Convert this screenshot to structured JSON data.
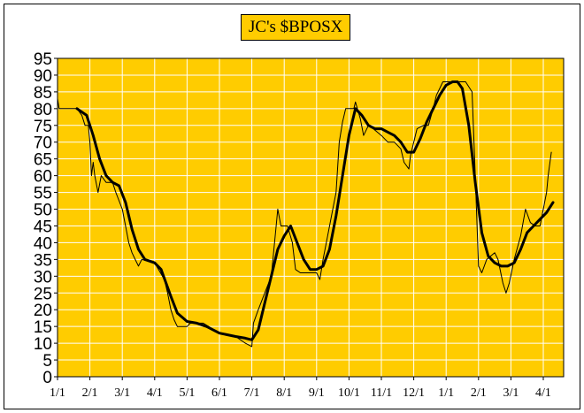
{
  "chart_data": {
    "type": "line",
    "title": "JC's $BPOSX",
    "xlabel": "",
    "ylabel": "",
    "ylim": [
      0,
      95
    ],
    "yticks": [
      0,
      5,
      10,
      15,
      20,
      25,
      30,
      35,
      40,
      45,
      50,
      55,
      60,
      65,
      70,
      75,
      80,
      85,
      90,
      95
    ],
    "xticks": [
      "1/1",
      "2/1",
      "3/1",
      "4/1",
      "5/1",
      "6/1",
      "7/1",
      "8/1",
      "9/1",
      "10/1",
      "11/1",
      "12/1",
      "1/1",
      "2/1",
      "3/1",
      "4/1"
    ],
    "x_range": [
      0,
      16.5
    ],
    "grid": true,
    "legend": "none",
    "colors": {
      "plot_bg": "#ffcc00",
      "grid": "#ffffff",
      "line": "#000000",
      "title_bg": "#ffcc00"
    },
    "series": [
      {
        "style": "thin",
        "points": [
          [
            0,
            83
          ],
          [
            0.05,
            80
          ],
          [
            0.6,
            80
          ],
          [
            0.75,
            78
          ],
          [
            0.85,
            75
          ],
          [
            0.95,
            75
          ],
          [
            1.0,
            70
          ],
          [
            1.05,
            60
          ],
          [
            1.1,
            64
          ],
          [
            1.15,
            60
          ],
          [
            1.25,
            55
          ],
          [
            1.35,
            60
          ],
          [
            1.5,
            58
          ],
          [
            1.7,
            58
          ],
          [
            1.8,
            55
          ],
          [
            2.0,
            50
          ],
          [
            2.1,
            45
          ],
          [
            2.2,
            40
          ],
          [
            2.3,
            37
          ],
          [
            2.4,
            35
          ],
          [
            2.5,
            33
          ],
          [
            2.6,
            35
          ],
          [
            3.0,
            34
          ],
          [
            3.3,
            29
          ],
          [
            3.4,
            25
          ],
          [
            3.5,
            20
          ],
          [
            3.6,
            17
          ],
          [
            3.7,
            15
          ],
          [
            4.0,
            15
          ],
          [
            4.1,
            16
          ],
          [
            4.5,
            16
          ],
          [
            5.0,
            13
          ],
          [
            5.5,
            12
          ],
          [
            5.8,
            10
          ],
          [
            6.0,
            9
          ],
          [
            6.05,
            16
          ],
          [
            6.2,
            20
          ],
          [
            6.4,
            25
          ],
          [
            6.6,
            30
          ],
          [
            6.75,
            45
          ],
          [
            6.8,
            50
          ],
          [
            6.9,
            45
          ],
          [
            7.1,
            45
          ],
          [
            7.25,
            40
          ],
          [
            7.35,
            32
          ],
          [
            7.5,
            31
          ],
          [
            7.9,
            31
          ],
          [
            8.0,
            31
          ],
          [
            8.1,
            29
          ],
          [
            8.2,
            35
          ],
          [
            8.3,
            40
          ],
          [
            8.5,
            50
          ],
          [
            8.6,
            55
          ],
          [
            8.7,
            70
          ],
          [
            8.8,
            76
          ],
          [
            8.9,
            80
          ],
          [
            9.15,
            80
          ],
          [
            9.2,
            82
          ],
          [
            9.35,
            77
          ],
          [
            9.45,
            72
          ],
          [
            9.6,
            75
          ],
          [
            9.75,
            74
          ],
          [
            10.0,
            72
          ],
          [
            10.2,
            70
          ],
          [
            10.4,
            70
          ],
          [
            10.6,
            68
          ],
          [
            10.7,
            64
          ],
          [
            10.85,
            62
          ],
          [
            10.9,
            66
          ],
          [
            11.0,
            70
          ],
          [
            11.1,
            74
          ],
          [
            11.3,
            75
          ],
          [
            11.45,
            75
          ],
          [
            11.6,
            80
          ],
          [
            11.7,
            84
          ],
          [
            11.8,
            86
          ],
          [
            11.9,
            88
          ],
          [
            12.6,
            88
          ],
          [
            12.8,
            85
          ],
          [
            12.9,
            60
          ],
          [
            13.0,
            33
          ],
          [
            13.1,
            31
          ],
          [
            13.25,
            35
          ],
          [
            13.5,
            37
          ],
          [
            13.6,
            35
          ],
          [
            13.75,
            28
          ],
          [
            13.85,
            25
          ],
          [
            13.95,
            28
          ],
          [
            14.1,
            35
          ],
          [
            14.3,
            42
          ],
          [
            14.45,
            50
          ],
          [
            14.6,
            46
          ],
          [
            14.75,
            45
          ],
          [
            14.9,
            45
          ],
          [
            15.0,
            50
          ],
          [
            15.1,
            55
          ],
          [
            15.15,
            60
          ],
          [
            15.25,
            67
          ]
        ]
      },
      {
        "style": "thick",
        "points": [
          [
            0.6,
            80
          ],
          [
            0.9,
            78
          ],
          [
            1.1,
            72
          ],
          [
            1.3,
            65
          ],
          [
            1.5,
            60
          ],
          [
            1.7,
            58
          ],
          [
            1.9,
            57
          ],
          [
            2.1,
            52
          ],
          [
            2.3,
            44
          ],
          [
            2.5,
            38
          ],
          [
            2.7,
            35
          ],
          [
            3.0,
            34
          ],
          [
            3.2,
            32
          ],
          [
            3.5,
            24
          ],
          [
            3.7,
            19
          ],
          [
            4.0,
            16.5
          ],
          [
            4.3,
            16
          ],
          [
            4.6,
            15
          ],
          [
            5.0,
            13
          ],
          [
            5.5,
            12
          ],
          [
            5.8,
            11.5
          ],
          [
            6.0,
            11
          ],
          [
            6.2,
            14
          ],
          [
            6.4,
            22
          ],
          [
            6.6,
            30
          ],
          [
            6.8,
            38
          ],
          [
            7.0,
            42
          ],
          [
            7.2,
            45
          ],
          [
            7.4,
            40
          ],
          [
            7.6,
            35
          ],
          [
            7.8,
            32
          ],
          [
            8.0,
            32
          ],
          [
            8.2,
            33
          ],
          [
            8.4,
            38
          ],
          [
            8.6,
            48
          ],
          [
            8.8,
            60
          ],
          [
            9.0,
            72
          ],
          [
            9.2,
            80
          ],
          [
            9.4,
            78
          ],
          [
            9.6,
            75
          ],
          [
            9.8,
            74
          ],
          [
            10.0,
            74
          ],
          [
            10.2,
            73
          ],
          [
            10.4,
            72
          ],
          [
            10.6,
            70
          ],
          [
            10.8,
            67
          ],
          [
            11.0,
            67
          ],
          [
            11.2,
            71
          ],
          [
            11.4,
            76
          ],
          [
            11.6,
            80
          ],
          [
            11.8,
            84
          ],
          [
            12.0,
            87
          ],
          [
            12.2,
            88
          ],
          [
            12.35,
            88
          ],
          [
            12.5,
            86
          ],
          [
            12.7,
            75
          ],
          [
            12.9,
            58
          ],
          [
            13.1,
            43
          ],
          [
            13.3,
            36
          ],
          [
            13.5,
            34
          ],
          [
            13.7,
            33
          ],
          [
            13.9,
            33
          ],
          [
            14.1,
            34
          ],
          [
            14.3,
            38
          ],
          [
            14.5,
            43
          ],
          [
            14.7,
            45
          ],
          [
            14.9,
            47
          ],
          [
            15.1,
            49
          ],
          [
            15.3,
            52
          ]
        ]
      }
    ]
  }
}
